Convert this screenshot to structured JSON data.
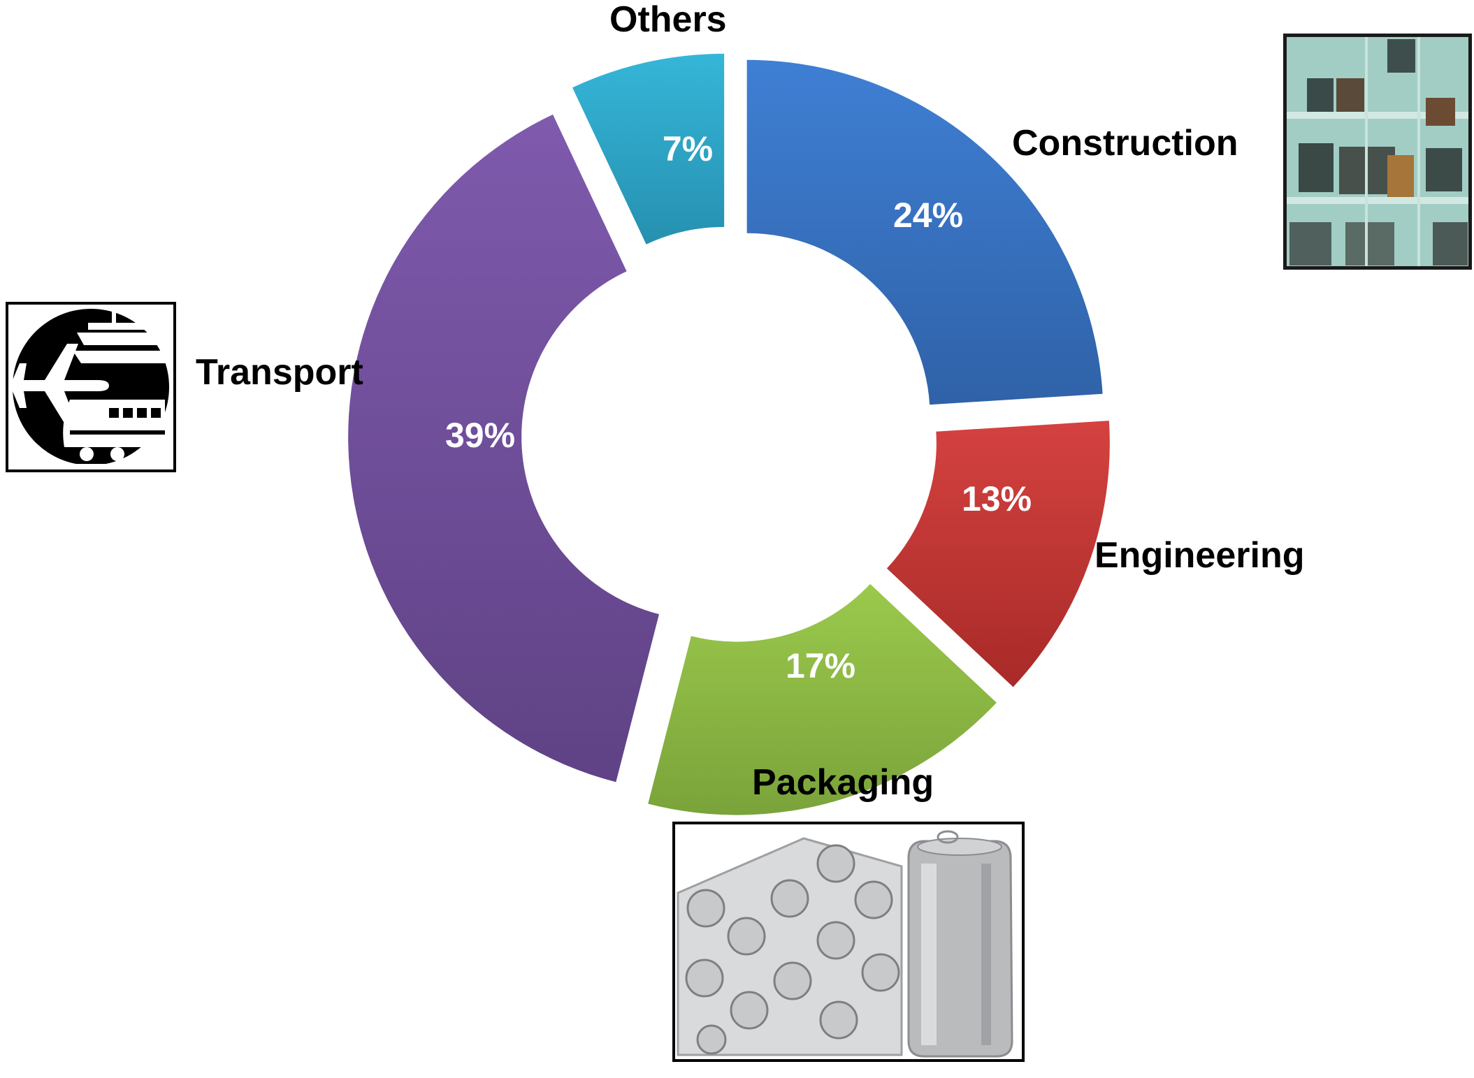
{
  "chart_data": {
    "type": "pie",
    "variant": "donut, exploded slices",
    "title": "",
    "legend": "none (slices labelled directly)",
    "categories": [
      "Construction",
      "Engineering",
      "Packaging",
      "Transport",
      "Others"
    ],
    "values": [
      24,
      13,
      17,
      39,
      7
    ],
    "unit": "%",
    "data_labels": [
      "24%",
      "13%",
      "17%",
      "39%",
      "7%"
    ],
    "colors": [
      "#3a74c4",
      "#c53634",
      "#8ab543",
      "#6f4e98",
      "#2ea6c8"
    ],
    "slices": [
      {
        "category": "Construction",
        "value": 24,
        "label": "24%",
        "color": "#3a74c4",
        "icon": "building-facade-photo"
      },
      {
        "category": "Engineering",
        "value": 13,
        "label": "13%",
        "color": "#c53634",
        "icon": null
      },
      {
        "category": "Packaging",
        "value": 17,
        "label": "17%",
        "color": "#8ab543",
        "icon": "blister-pack-and-can-photo"
      },
      {
        "category": "Transport",
        "value": 39,
        "label": "39%",
        "color": "#6f4e98",
        "icon": "ship-plane-train-icon"
      },
      {
        "category": "Others",
        "value": 7,
        "label": "7%",
        "color": "#2ea6c8",
        "icon": null
      }
    ]
  }
}
